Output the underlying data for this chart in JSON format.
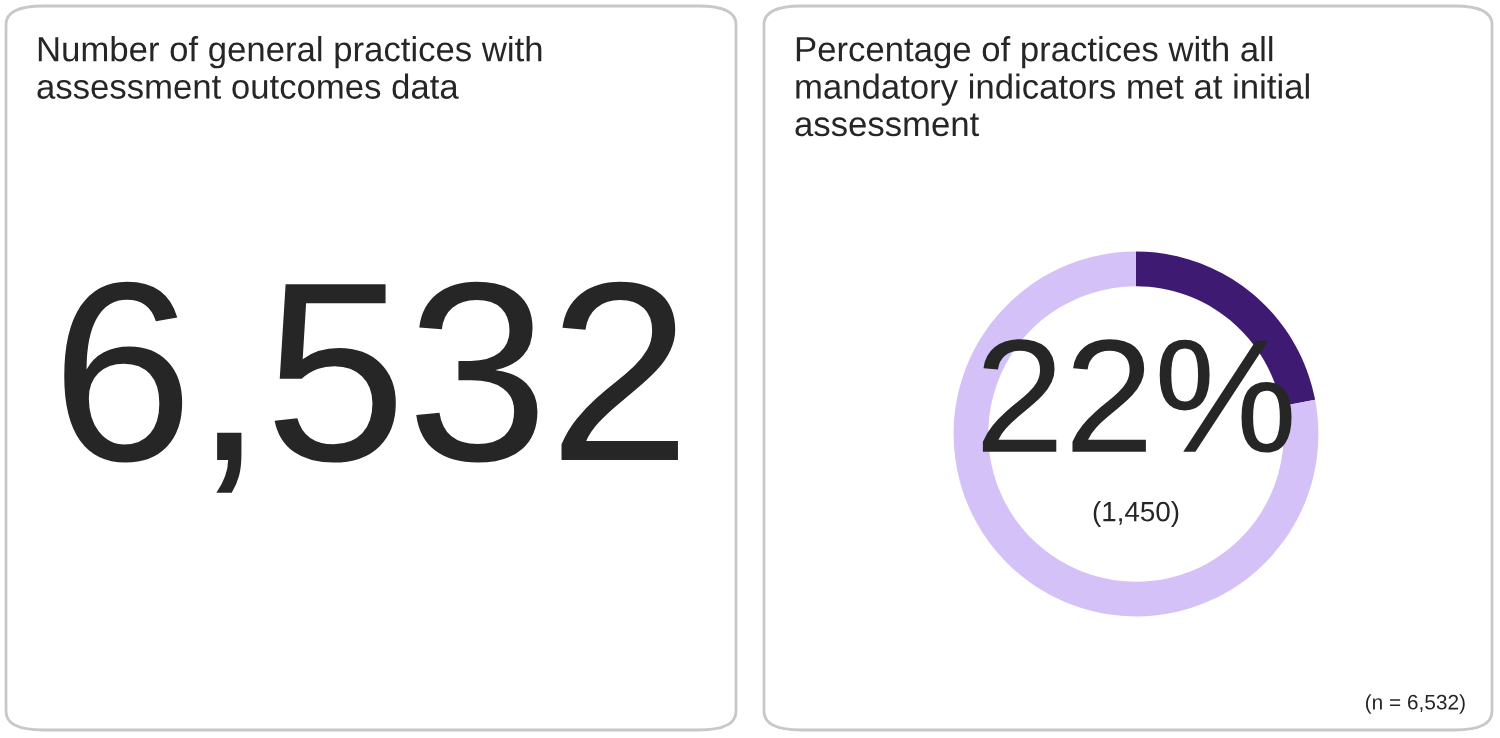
{
  "chart_data": [
    {
      "type": "other",
      "title": "Number of general practices with assessment outcomes data",
      "annotations": [
        "6,532"
      ]
    },
    {
      "type": "donut",
      "title": "Percentage of practices with all mandatory indicators met at initial assessment",
      "categories": [
        null,
        null
      ],
      "values": [
        22,
        78
      ],
      "colors": [
        "#3f1a73",
        "#d4c1f7"
      ],
      "annotations": [
        "22%",
        "(1,450)",
        "(n = 6,532)"
      ]
    }
  ]
}
